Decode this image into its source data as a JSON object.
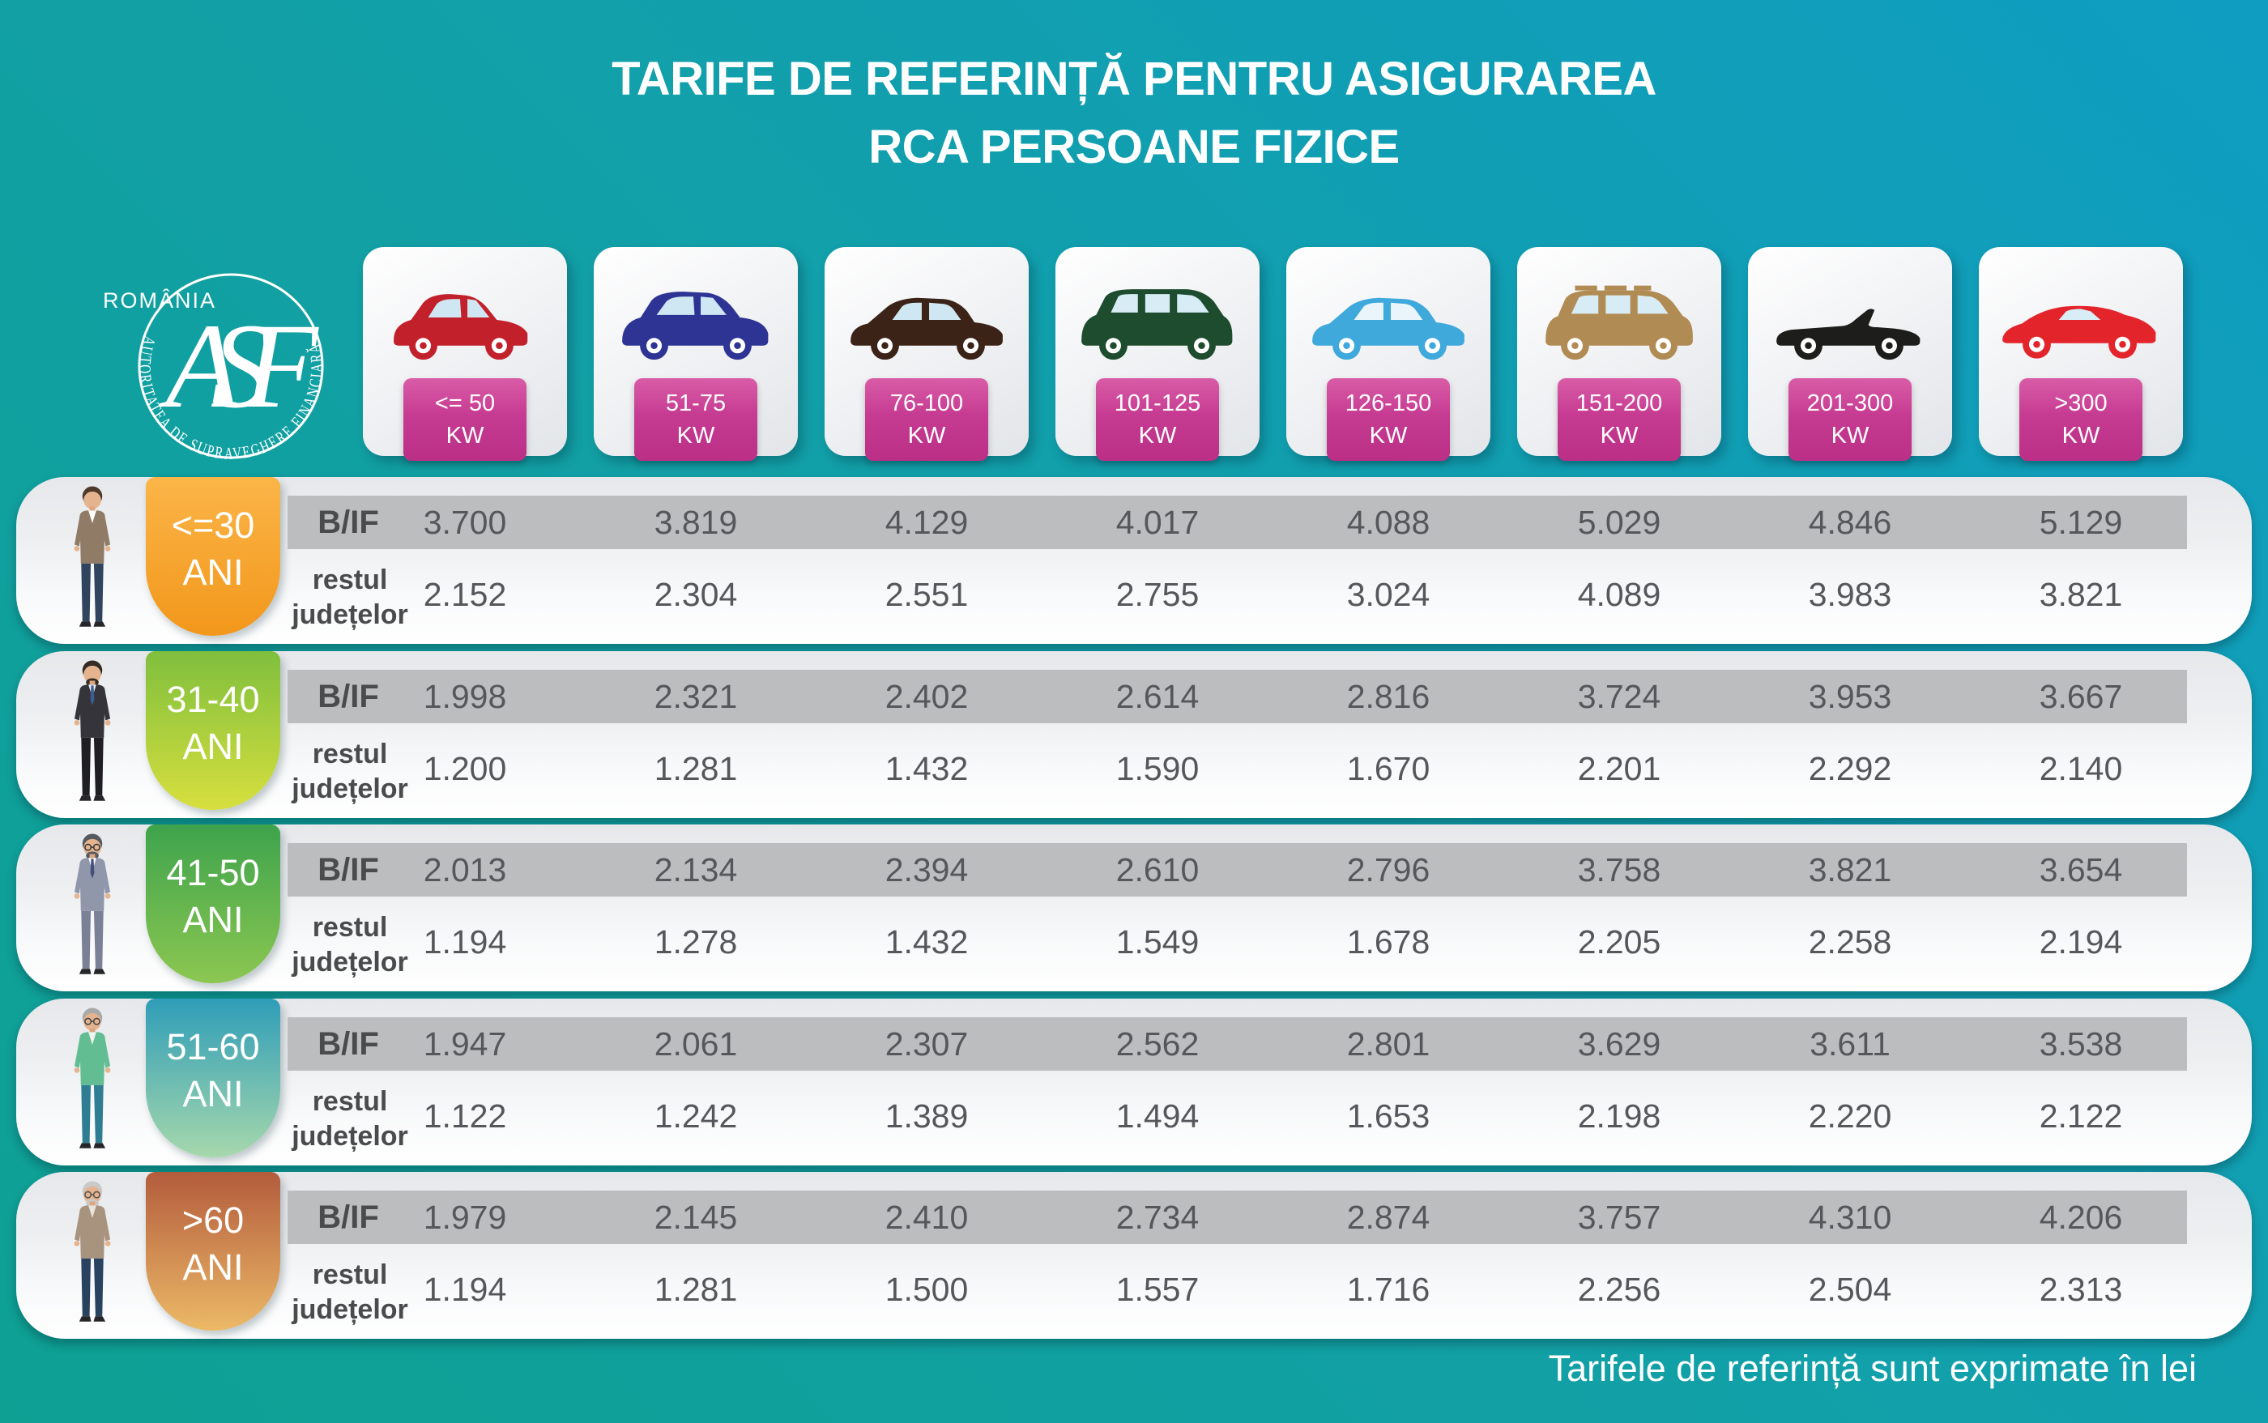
{
  "title": {
    "line1": "TARIFE DE REFERINȚĂ PENTRU ASIGURAREA",
    "line2": "RCA PERSOANE FIZICE"
  },
  "logo": {
    "country": "ROMÂNIA",
    "authority": "AUTORITATEA DE SUPRAVEGHERE FINANCIARĂ",
    "monogram": "ASF"
  },
  "footer": {
    "note": "Tarifele de referință sunt exprimate în lei"
  },
  "row_labels": {
    "bif": "B/IF",
    "rest_line1": "restul",
    "rest_line2": "județelor"
  },
  "accent_colors": {
    "background_green": "#0ea093",
    "background_blue": "#0f9dc2",
    "kw_badge_magenta": "#bb2f87",
    "bif_band_gray": "#bcbdbf",
    "value_text": "#56575b"
  },
  "power_columns": [
    {
      "range": "<= 50",
      "unit": "KW",
      "icon": "car-hatchback-icon",
      "color": "#c2202a"
    },
    {
      "range": "51-75",
      "unit": "KW",
      "icon": "car-crossover-icon",
      "color": "#2d3494"
    },
    {
      "range": "76-100",
      "unit": "KW",
      "icon": "car-sedan-icon",
      "color": "#3c2317"
    },
    {
      "range": "101-125",
      "unit": "KW",
      "icon": "car-minivan-icon",
      "color": "#1e4c2e"
    },
    {
      "range": "126-150",
      "unit": "KW",
      "icon": "car-sedan-blue-icon",
      "color": "#3fa9dc"
    },
    {
      "range": "151-200",
      "unit": "KW",
      "icon": "car-suv-icon",
      "color": "#b18b54"
    },
    {
      "range": "201-300",
      "unit": "KW",
      "icon": "car-convertible-icon",
      "color": "#1d1d1b"
    },
    {
      "range": ">300",
      "unit": "KW",
      "icon": "car-sports-icon",
      "color": "#e3242b"
    }
  ],
  "age_groups": [
    {
      "label": "<=30",
      "label2": "ANI",
      "avatar": "avatar-man-under-30",
      "badge_top": "#fbb548",
      "badge_bottom": "#f2971b",
      "avatar_colors": {
        "hair": "#4f392a",
        "top": "#8f7b66",
        "shirt": "#ffffff",
        "pants": "#31445e",
        "tie": "transparent",
        "beard": "transparent",
        "glasses": "transparent"
      },
      "bif": [
        "3.700",
        "3.819",
        "4.129",
        "4.017",
        "4.088",
        "5.029",
        "4.846",
        "5.129"
      ],
      "rest": [
        "2.152",
        "2.304",
        "2.551",
        "2.755",
        "3.024",
        "4.089",
        "3.983",
        "3.821"
      ]
    },
    {
      "label": "31-40",
      "label2": "ANI",
      "avatar": "avatar-man-31-40",
      "badge_top": "#7fbf3d",
      "badge_bottom": "#d7df3e",
      "avatar_colors": {
        "hair": "#332b24",
        "top": "#34343a",
        "shirt": "#e8ecf0",
        "pants": "#1f1f23",
        "tie": "#3b5e92",
        "beard": "#332b24",
        "glasses": "transparent"
      },
      "bif": [
        "1.998",
        "2.321",
        "2.402",
        "2.614",
        "2.816",
        "3.724",
        "3.953",
        "3.667"
      ],
      "rest": [
        "1.200",
        "1.281",
        "1.432",
        "1.590",
        "1.670",
        "2.201",
        "2.292",
        "2.140"
      ]
    },
    {
      "label": "41-50",
      "label2": "ANI",
      "avatar": "avatar-man-41-50",
      "badge_top": "#3da34c",
      "badge_bottom": "#8cc751",
      "avatar_colors": {
        "hair": "#555a60",
        "top": "#9097ab",
        "shirt": "#ffffff",
        "pants": "#7a8096",
        "tie": "#44507b",
        "beard": "#555a60",
        "glasses": "#3a3a3a"
      },
      "bif": [
        "2.013",
        "2.134",
        "2.394",
        "2.610",
        "2.796",
        "3.758",
        "3.821",
        "3.654"
      ],
      "rest": [
        "1.194",
        "1.278",
        "1.432",
        "1.549",
        "1.678",
        "2.205",
        "2.258",
        "2.194"
      ]
    },
    {
      "label": "51-60",
      "label2": "ANI",
      "avatar": "avatar-man-51-60",
      "badge_top": "#2f9db8",
      "badge_bottom": "#a6d8ac",
      "avatar_colors": {
        "hair": "#a9a9a9",
        "top": "#63bd93",
        "shirt": "#f2f2f2",
        "pants": "#2f7d92",
        "tie": "transparent",
        "beard": "transparent",
        "glasses": "#444444"
      },
      "bif": [
        "1.947",
        "2.061",
        "2.307",
        "2.562",
        "2.801",
        "3.629",
        "3.611",
        "3.538"
      ],
      "rest": [
        "1.122",
        "1.242",
        "1.389",
        "1.494",
        "1.653",
        "2.198",
        "2.220",
        "2.122"
      ]
    },
    {
      "label": ">60",
      "label2": "ANI",
      "avatar": "avatar-man-over-60",
      "badge_top": "#b35c3c",
      "badge_bottom": "#ecb967",
      "avatar_colors": {
        "hair": "#c9c9c9",
        "top": "#a8937f",
        "shirt": "#e9e4dc",
        "pants": "#28425f",
        "tie": "transparent",
        "beard": "#c9c9c9",
        "glasses": "#555555"
      },
      "bif": [
        "1.979",
        "2.145",
        "2.410",
        "2.734",
        "2.874",
        "3.757",
        "4.310",
        "4.206"
      ],
      "rest": [
        "1.194",
        "1.281",
        "1.500",
        "1.557",
        "1.716",
        "2.256",
        "2.504",
        "2.313"
      ]
    }
  ],
  "chart_data": {
    "type": "table",
    "title": "TARIFE DE REFERINȚĂ PENTRU ASIGURAREA RCA PERSOANE FIZICE",
    "unit_note": "Tarifele de referință sunt exprimate în lei",
    "columns": [
      "<= 50 KW",
      "51-75 KW",
      "76-100 KW",
      "101-125 KW",
      "126-150 KW",
      "151-200 KW",
      "201-300 KW",
      ">300 KW"
    ],
    "rows": [
      {
        "age_group": "<=30 ANI",
        "region": "B/IF",
        "values": [
          3700,
          3819,
          4129,
          4017,
          4088,
          5029,
          4846,
          5129
        ]
      },
      {
        "age_group": "<=30 ANI",
        "region": "restul județelor",
        "values": [
          2152,
          2304,
          2551,
          2755,
          3024,
          4089,
          3983,
          3821
        ]
      },
      {
        "age_group": "31-40 ANI",
        "region": "B/IF",
        "values": [
          1998,
          2321,
          2402,
          2614,
          2816,
          3724,
          3953,
          3667
        ]
      },
      {
        "age_group": "31-40 ANI",
        "region": "restul județelor",
        "values": [
          1200,
          1281,
          1432,
          1590,
          1670,
          2201,
          2292,
          2140
        ]
      },
      {
        "age_group": "41-50 ANI",
        "region": "B/IF",
        "values": [
          2013,
          2134,
          2394,
          2610,
          2796,
          3758,
          3821,
          3654
        ]
      },
      {
        "age_group": "41-50 ANI",
        "region": "restul județelor",
        "values": [
          1194,
          1278,
          1432,
          1549,
          1678,
          2205,
          2258,
          2194
        ]
      },
      {
        "age_group": "51-60 ANI",
        "region": "B/IF",
        "values": [
          1947,
          2061,
          2307,
          2562,
          2801,
          3629,
          3611,
          3538
        ]
      },
      {
        "age_group": "51-60 ANI",
        "region": "restul județelor",
        "values": [
          1122,
          1242,
          1389,
          1494,
          1653,
          2198,
          2220,
          2122
        ]
      },
      {
        "age_group": ">60 ANI",
        "region": "B/IF",
        "values": [
          1979,
          2145,
          2410,
          2734,
          2874,
          3757,
          4310,
          4206
        ]
      },
      {
        "age_group": ">60 ANI",
        "region": "restul județelor",
        "values": [
          1194,
          1281,
          1500,
          1557,
          1716,
          2256,
          2504,
          2313
        ]
      }
    ]
  }
}
